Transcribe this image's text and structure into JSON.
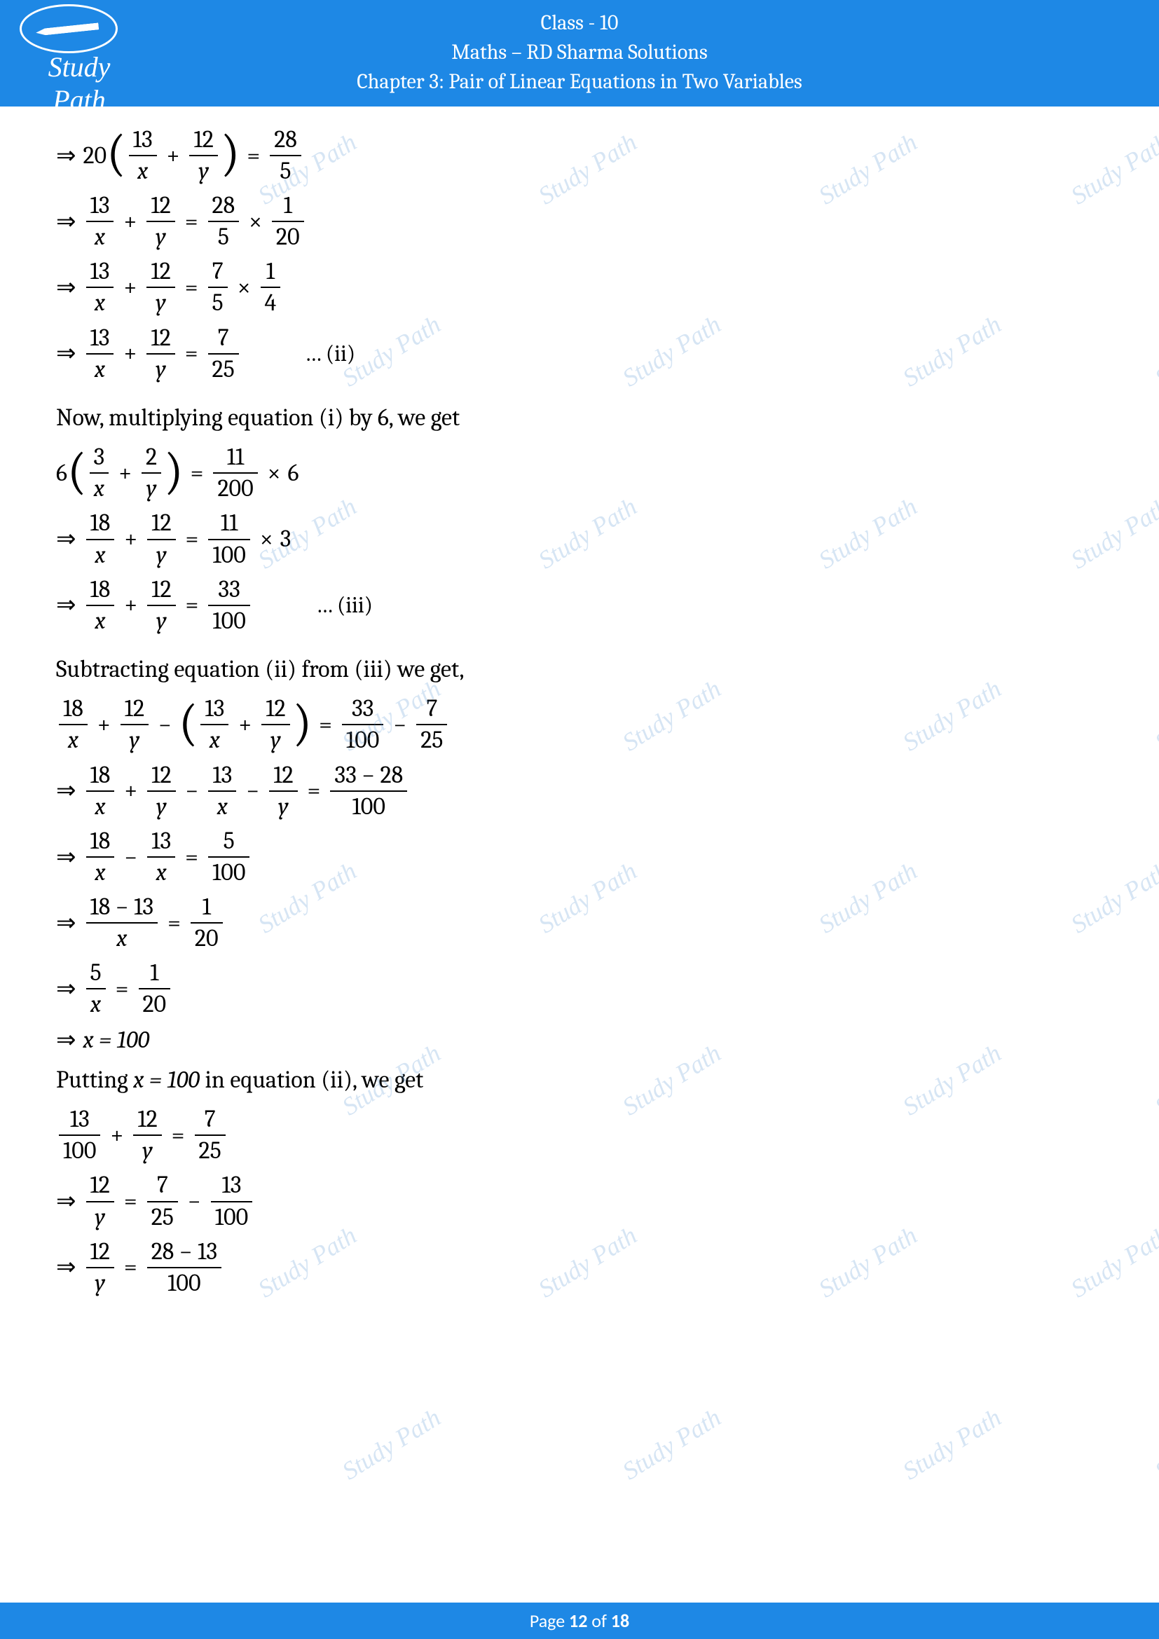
{
  "header": {
    "class_line": "Class - 10",
    "subject_line": "Maths – RD Sharma Solutions",
    "chapter_line": "Chapter 3: Pair of Linear Equations in Two Variables",
    "logo_text": "Study Path"
  },
  "watermark_text": "Study Path",
  "footer": {
    "prefix": "Page ",
    "current": "12",
    "middle": " of ",
    "total": "18"
  },
  "lines": {
    "l1": {
      "coef": "20",
      "f1n": "13",
      "f1d": "x",
      "f2n": "12",
      "f2d": "y",
      "rn": "28",
      "rd": "5"
    },
    "l2": {
      "f1n": "13",
      "f1d": "x",
      "f2n": "12",
      "f2d": "y",
      "r1n": "28",
      "r1d": "5",
      "r2n": "1",
      "r2d": "20"
    },
    "l3": {
      "f1n": "13",
      "f1d": "x",
      "f2n": "12",
      "f2d": "y",
      "r1n": "7",
      "r1d": "5",
      "r2n": "1",
      "r2d": "4"
    },
    "l4": {
      "f1n": "13",
      "f1d": "x",
      "f2n": "12",
      "f2d": "y",
      "rn": "7",
      "rd": "25",
      "label": "… (ii)"
    },
    "t1": "Now, multiplying equation (i) by 6, we get",
    "l5": {
      "coef": "6",
      "f1n": "3",
      "f1d": "x",
      "f2n": "2",
      "f2d": "y",
      "rn": "11",
      "rd": "200",
      "mult": "6"
    },
    "l6": {
      "f1n": "18",
      "f1d": "x",
      "f2n": "12",
      "f2d": "y",
      "rn": "11",
      "rd": "100",
      "mult": "3"
    },
    "l7": {
      "f1n": "18",
      "f1d": "x",
      "f2n": "12",
      "f2d": "y",
      "rn": "33",
      "rd": "100",
      "label": "… (iii)"
    },
    "t2": "Subtracting equation (ii) from (iii) we get,",
    "l8": {
      "a1n": "18",
      "a1d": "x",
      "a2n": "12",
      "a2d": "y",
      "b1n": "13",
      "b1d": "x",
      "b2n": "12",
      "b2d": "y",
      "r1n": "33",
      "r1d": "100",
      "r2n": "7",
      "r2d": "25"
    },
    "l9": {
      "f1n": "18",
      "f1d": "x",
      "f2n": "12",
      "f2d": "y",
      "f3n": "13",
      "f3d": "x",
      "f4n": "12",
      "f4d": "y",
      "rn": "33 − 28",
      "rd": "100"
    },
    "l10": {
      "f1n": "18",
      "f1d": "x",
      "f2n": "13",
      "f2d": "x",
      "rn": "5",
      "rd": "100"
    },
    "l11": {
      "ln": "18 − 13",
      "ld": "x",
      "rn": "1",
      "rd": "20"
    },
    "l12": {
      "ln": "5",
      "ld": "x",
      "rn": "1",
      "rd": "20"
    },
    "l13": {
      "text": "x = 100"
    },
    "t3_a": "Putting ",
    "t3_b": "x = 100",
    "t3_c": " in equation (ii), we get",
    "l14": {
      "f1n": "13",
      "f1d": "100",
      "f2n": "12",
      "f2d": "y",
      "rn": "7",
      "rd": "25"
    },
    "l15": {
      "f1n": "12",
      "f1d": "y",
      "r1n": "7",
      "r1d": "25",
      "r2n": "13",
      "r2d": "100"
    },
    "l16": {
      "f1n": "12",
      "f1d": "y",
      "rn": "28 − 13",
      "rd": "100"
    }
  },
  "colors": {
    "header_bg": "#1e88e5",
    "text": "#000000",
    "watermark": "rgba(90,150,210,0.25)"
  }
}
